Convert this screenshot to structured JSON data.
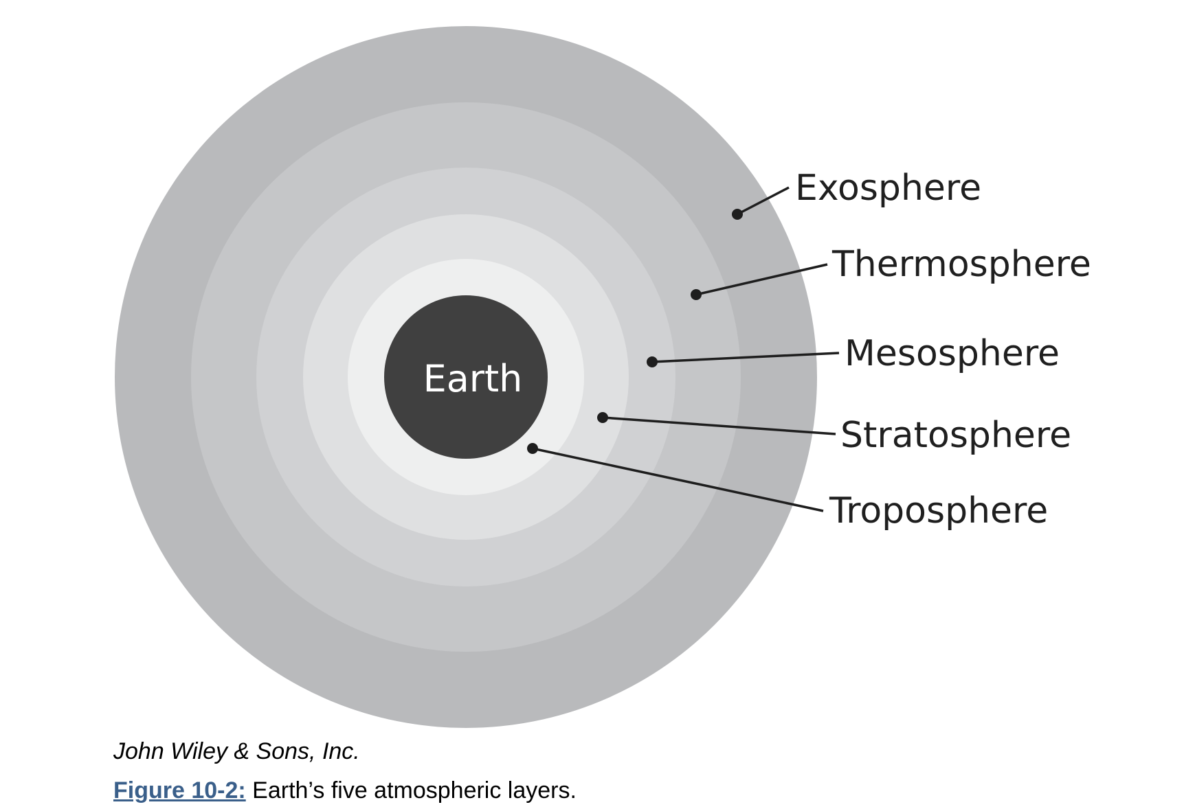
{
  "diagram": {
    "center_label": "Earth",
    "layers": [
      {
        "name": "Exosphere",
        "color": "#b9babc"
      },
      {
        "name": "Thermosphere",
        "color": "#c5c6c8"
      },
      {
        "name": "Mesosphere",
        "color": "#d0d1d3"
      },
      {
        "name": "Stratosphere",
        "color": "#dfe0e1"
      },
      {
        "name": "Troposphere",
        "color": "#eeefef"
      }
    ],
    "earth_color": "#404040"
  },
  "credit": "John Wiley & Sons, Inc.",
  "caption": {
    "figure_ref": "Figure 10-2:",
    "text": " Earth’s five atmospheric layers."
  },
  "colors": {
    "link": "#3a5f8a"
  }
}
